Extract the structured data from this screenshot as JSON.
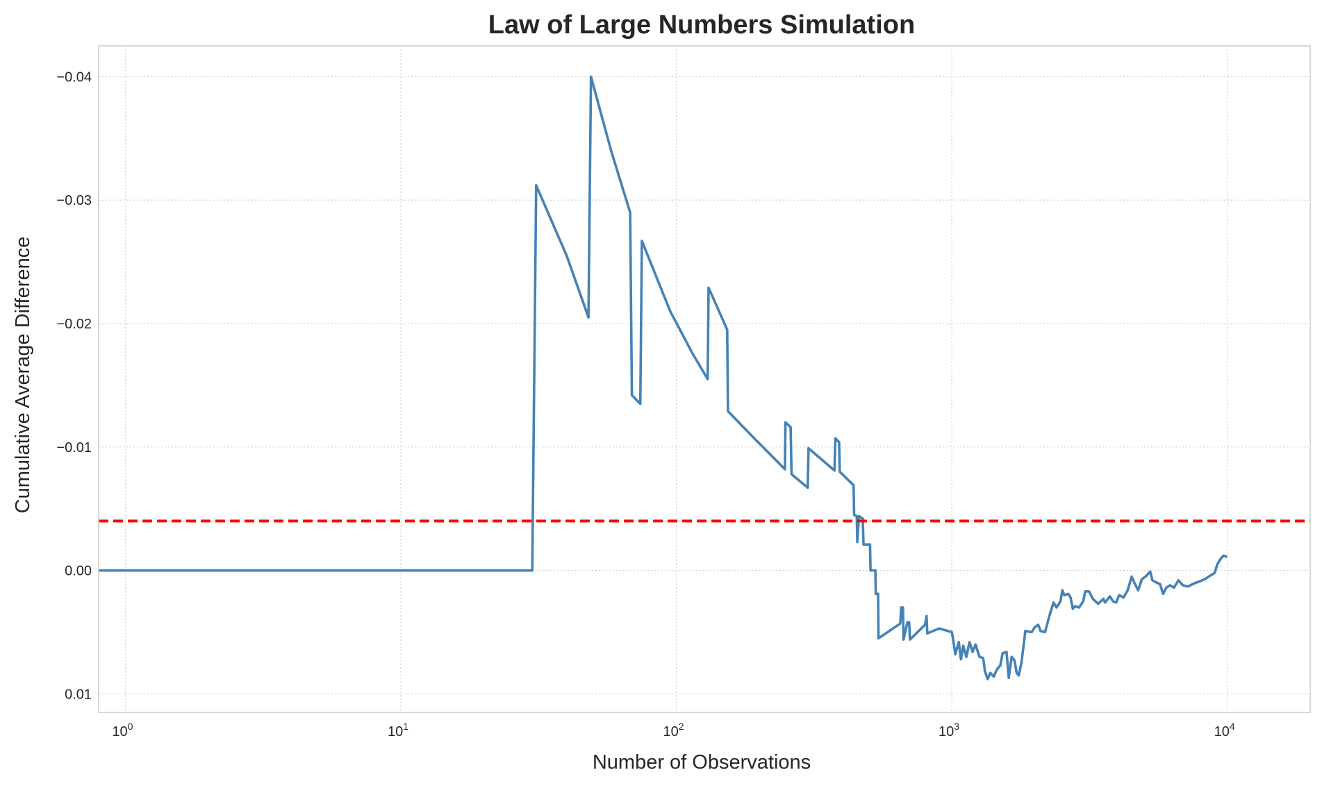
{
  "chart_data": {
    "type": "line",
    "title": "Law of Large Numbers Simulation",
    "xlabel": "Number of Observations",
    "ylabel": "Cumulative Average Difference",
    "x_scale": "log",
    "xlim": [
      0.8,
      20000
    ],
    "ylim": [
      0.0115,
      -0.0425
    ],
    "y_inverted": true,
    "grid": true,
    "x_ticks": [
      {
        "value": 1,
        "base": "10",
        "exp": "0"
      },
      {
        "value": 10,
        "base": "10",
        "exp": "1"
      },
      {
        "value": 100,
        "base": "10",
        "exp": "2"
      },
      {
        "value": 1000,
        "base": "10",
        "exp": "3"
      },
      {
        "value": 10000,
        "base": "10",
        "exp": "4"
      }
    ],
    "y_ticks": [
      {
        "value": -0.04,
        "label": "−0.04"
      },
      {
        "value": -0.03,
        "label": "−0.03"
      },
      {
        "value": -0.02,
        "label": "−0.02"
      },
      {
        "value": -0.01,
        "label": "−0.01"
      },
      {
        "value": 0.0,
        "label": "0.00"
      },
      {
        "value": 0.01,
        "label": "0.01"
      }
    ],
    "series": [
      {
        "color": "#4682b4",
        "style": "solid",
        "points": [
          [
            0.8,
            0.0
          ],
          [
            30,
            0.0
          ],
          [
            31,
            -0.0312
          ],
          [
            40,
            -0.0255
          ],
          [
            48,
            -0.0205
          ],
          [
            49,
            -0.04
          ],
          [
            58,
            -0.034
          ],
          [
            68,
            -0.029
          ],
          [
            69,
            -0.0142
          ],
          [
            74,
            -0.0135
          ],
          [
            75,
            -0.0267
          ],
          [
            95,
            -0.021
          ],
          [
            115,
            -0.0175
          ],
          [
            130,
            -0.0155
          ],
          [
            131,
            -0.0229
          ],
          [
            153,
            -0.0195
          ],
          [
            154,
            -0.0129
          ],
          [
            190,
            -0.0108
          ],
          [
            248,
            -0.0082
          ],
          [
            249,
            -0.012
          ],
          [
            260,
            -0.0116
          ],
          [
            262,
            -0.0078
          ],
          [
            300,
            -0.0067
          ],
          [
            302,
            -0.0099
          ],
          [
            375,
            -0.0081
          ],
          [
            378,
            -0.0107
          ],
          [
            390,
            -0.0104
          ],
          [
            392,
            -0.008
          ],
          [
            440,
            -0.0069
          ],
          [
            442,
            -0.0045
          ],
          [
            452,
            -0.0044
          ],
          [
            454,
            -0.0023
          ],
          [
            460,
            -0.0044
          ],
          [
            475,
            -0.0042
          ],
          [
            478,
            -0.0021
          ],
          [
            505,
            -0.0021
          ],
          [
            507,
            0.0
          ],
          [
            528,
            0.0
          ],
          [
            530,
            0.0019
          ],
          [
            540,
            0.0019
          ],
          [
            542,
            0.0055
          ],
          [
            650,
            0.0043
          ],
          [
            655,
            0.003
          ],
          [
            665,
            0.003
          ],
          [
            668,
            0.0056
          ],
          [
            690,
            0.0042
          ],
          [
            700,
            0.0042
          ],
          [
            705,
            0.0056
          ],
          [
            800,
            0.0044
          ],
          [
            810,
            0.0037
          ],
          [
            815,
            0.0051
          ],
          [
            900,
            0.0047
          ],
          [
            1000,
            0.005
          ],
          [
            1010,
            0.0055
          ],
          [
            1030,
            0.0068
          ],
          [
            1060,
            0.0058
          ],
          [
            1080,
            0.0072
          ],
          [
            1100,
            0.0061
          ],
          [
            1130,
            0.007
          ],
          [
            1160,
            0.0058
          ],
          [
            1190,
            0.0066
          ],
          [
            1220,
            0.006
          ],
          [
            1260,
            0.007
          ],
          [
            1300,
            0.0071
          ],
          [
            1320,
            0.0082
          ],
          [
            1350,
            0.0088
          ],
          [
            1380,
            0.0083
          ],
          [
            1420,
            0.0086
          ],
          [
            1460,
            0.008
          ],
          [
            1500,
            0.0077
          ],
          [
            1530,
            0.0067
          ],
          [
            1580,
            0.0066
          ],
          [
            1610,
            0.0087
          ],
          [
            1650,
            0.007
          ],
          [
            1690,
            0.0073
          ],
          [
            1720,
            0.0083
          ],
          [
            1750,
            0.0085
          ],
          [
            1790,
            0.0075
          ],
          [
            1820,
            0.0062
          ],
          [
            1850,
            0.0049
          ],
          [
            1950,
            0.005
          ],
          [
            2000,
            0.0046
          ],
          [
            2060,
            0.0044
          ],
          [
            2100,
            0.0049
          ],
          [
            2180,
            0.005
          ],
          [
            2260,
            0.0037
          ],
          [
            2340,
            0.0026
          ],
          [
            2400,
            0.003
          ],
          [
            2480,
            0.0025
          ],
          [
            2520,
            0.0016
          ],
          [
            2560,
            0.002
          ],
          [
            2650,
            0.0019
          ],
          [
            2700,
            0.0022
          ],
          [
            2750,
            0.0031
          ],
          [
            2800,
            0.0029
          ],
          [
            2900,
            0.003
          ],
          [
            3000,
            0.0025
          ],
          [
            3050,
            0.0017
          ],
          [
            3150,
            0.0017
          ],
          [
            3250,
            0.0023
          ],
          [
            3400,
            0.0027
          ],
          [
            3550,
            0.0023
          ],
          [
            3600,
            0.0026
          ],
          [
            3750,
            0.0021
          ],
          [
            3850,
            0.0025
          ],
          [
            3950,
            0.0026
          ],
          [
            4050,
            0.002
          ],
          [
            4200,
            0.0022
          ],
          [
            4350,
            0.0016
          ],
          [
            4500,
            0.0005
          ],
          [
            4600,
            0.001
          ],
          [
            4750,
            0.0016
          ],
          [
            4900,
            0.0007
          ],
          [
            5050,
            0.0005
          ],
          [
            5250,
            0.0001
          ],
          [
            5350,
            0.0008
          ],
          [
            5550,
            0.001
          ],
          [
            5700,
            0.0011
          ],
          [
            5850,
            0.0019
          ],
          [
            6000,
            0.0014
          ],
          [
            6200,
            0.0012
          ],
          [
            6400,
            0.0014
          ],
          [
            6650,
            0.0008
          ],
          [
            6900,
            0.0012
          ],
          [
            7200,
            0.0013
          ],
          [
            7500,
            0.0011
          ],
          [
            7900,
            0.0009
          ],
          [
            8300,
            0.0007
          ],
          [
            8700,
            0.0004
          ],
          [
            9000,
            0.0002
          ],
          [
            9200,
            -0.0005
          ],
          [
            9500,
            -0.001
          ],
          [
            9700,
            -0.0012
          ],
          [
            10000,
            -0.0011
          ]
        ]
      },
      {
        "color": "#ff0000",
        "style": "dashed",
        "points": [
          [
            0.8,
            -0.004
          ],
          [
            20000,
            -0.004
          ]
        ]
      }
    ]
  }
}
